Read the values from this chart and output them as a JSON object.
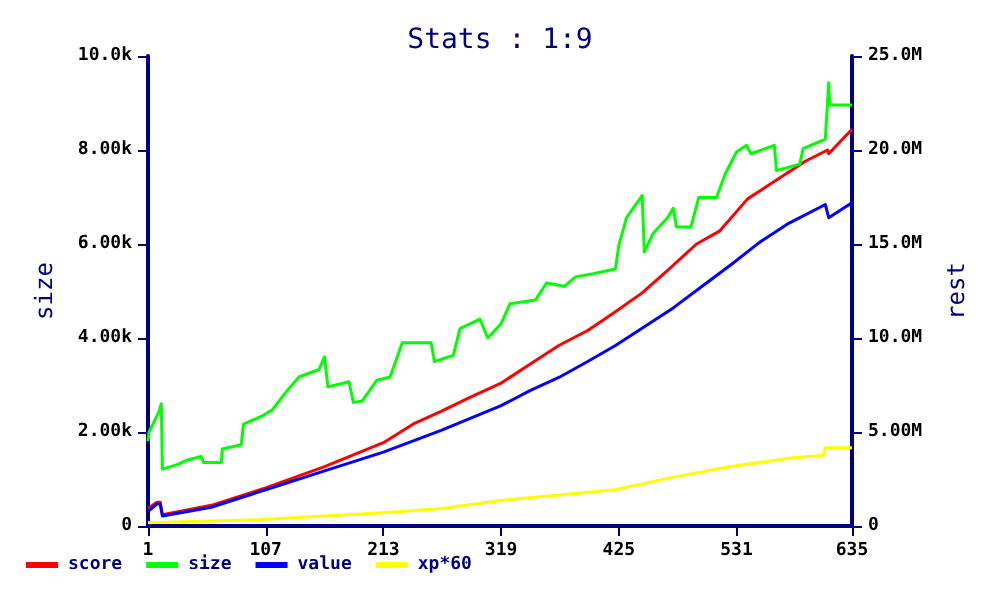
{
  "chart_data": {
    "type": "line",
    "title": "Stats : 1:9",
    "ylabel": "size",
    "y2label": "rest",
    "xlim": [
      1,
      635
    ],
    "xticks": [
      1,
      107,
      213,
      319,
      425,
      531,
      635
    ],
    "ylim": [
      0,
      10000
    ],
    "yticks": [
      0,
      {
        "value": 2000,
        "label": "2.00k"
      },
      {
        "value": 4000,
        "label": "4.00k"
      },
      {
        "value": 6000,
        "label": "6.00k"
      },
      {
        "value": 8000,
        "label": "8.00k"
      },
      {
        "value": 10000,
        "label": "10.0k"
      }
    ],
    "y2lim": [
      0,
      25000000
    ],
    "y2ticks": [
      0,
      {
        "value": 5000000,
        "label": "5.00M"
      },
      {
        "value": 10000000,
        "label": "10.0M"
      },
      {
        "value": 15000000,
        "label": "15.0M"
      },
      {
        "value": 20000000,
        "label": "20.0M"
      },
      {
        "value": 25000000,
        "label": "25.0M"
      }
    ],
    "grid": false,
    "legend": "bottom left",
    "marker": "none",
    "line_style": "solid",
    "series": [
      {
        "name": "score",
        "color": "#ff0000",
        "axis": "y2",
        "x": [
          1,
          9,
          12,
          14,
          58,
          107,
          160,
          213,
          240,
          265,
          290,
          319,
          345,
          371,
          397,
          422,
          446,
          469,
          495,
          516,
          541,
          567,
          593,
          613,
          614,
          635
        ],
        "values": [
          930000,
          1260000,
          1260000,
          600000,
          1100000,
          2030000,
          3160000,
          4430000,
          5430000,
          6100000,
          6820000,
          7600000,
          8600000,
          9600000,
          10400000,
          11400000,
          12400000,
          13600000,
          15000000,
          15700000,
          17400000,
          18400000,
          19400000,
          20000000,
          19800000,
          21100000
        ]
      },
      {
        "name": "size",
        "color": "#00ff00",
        "x": [
          1,
          2,
          7,
          11,
          13,
          14,
          28,
          36,
          49,
          51,
          67,
          68,
          85,
          87,
          103,
          113,
          126,
          137,
          155,
          160,
          163,
          182,
          186,
          194,
          199,
          207,
          219,
          230,
          256,
          259,
          276,
          282,
          300,
          307,
          319,
          327,
          350,
          360,
          376,
          386,
          402,
          422,
          425,
          432,
          446,
          448,
          456,
          469,
          474,
          477,
          490,
          497,
          513,
          521,
          531,
          540,
          544,
          565,
          567,
          588,
          591,
          611,
          614,
          615,
          635
        ],
        "values": [
          1800,
          2000,
          2240,
          2440,
          2600,
          1210,
          1310,
          1400,
          1480,
          1350,
          1350,
          1640,
          1730,
          2170,
          2330,
          2470,
          2870,
          3170,
          3330,
          3600,
          2960,
          3070,
          2630,
          2660,
          2830,
          3100,
          3170,
          3900,
          3900,
          3500,
          3630,
          4200,
          4400,
          4000,
          4300,
          4730,
          4810,
          5170,
          5100,
          5300,
          5370,
          5470,
          5970,
          6560,
          7030,
          5830,
          6230,
          6560,
          6760,
          6360,
          6360,
          6990,
          6990,
          7500,
          7960,
          8100,
          7920,
          8100,
          7560,
          7700,
          8030,
          8230,
          9430,
          8960,
          8960
        ]
      },
      {
        "name": "value",
        "color": "#0000ff",
        "axis": "y2",
        "x": [
          1,
          9,
          12,
          14,
          58,
          107,
          160,
          213,
          265,
          319,
          345,
          371,
          397,
          422,
          448,
          474,
          500,
          526,
          552,
          578,
          611,
          614,
          635
        ],
        "values": [
          770000,
          1170000,
          1170000,
          530000,
          1000000,
          1930000,
          2930000,
          3930000,
          5090000,
          6400000,
          7200000,
          7900000,
          8750000,
          9600000,
          10600000,
          11600000,
          12750000,
          13900000,
          15100000,
          16100000,
          17100000,
          16400000,
          17200000
        ]
      },
      {
        "name": "xp*60",
        "color": "#ffff00",
        "axis": "y2",
        "x": [
          1,
          100,
          160,
          213,
          265,
          319,
          422,
          448,
          474,
          526,
          578,
          609,
          611,
          635
        ],
        "values": [
          170000,
          330000,
          530000,
          700000,
          930000,
          1360000,
          1930000,
          2260000,
          2600000,
          3160000,
          3600000,
          3760000,
          4160000,
          4160000
        ]
      }
    ]
  }
}
